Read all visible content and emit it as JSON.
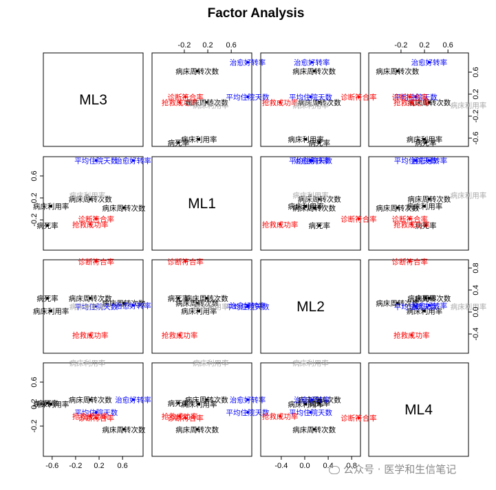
{
  "chart_data": {
    "type": "scatter",
    "title": "Factor Analysis",
    "factors": [
      "ML3",
      "ML1",
      "ML2",
      "ML4"
    ],
    "axis_range": [
      -0.75,
      0.95
    ],
    "ticks": {
      "top": [
        -0.2,
        0.2,
        0.6
      ],
      "bottom": [
        -0.6,
        -0.2,
        0.2,
        0.6
      ],
      "bottom_labels": [
        "-0.6",
        "-0.2",
        "0.2",
        "0.6"
      ],
      "left": [
        -0.2,
        0.2,
        0.6
      ],
      "right": [
        -0.6,
        -0.2,
        0.2,
        0.6
      ],
      "right_labels": [
        "-0.6",
        "-0.2",
        "0.2",
        "0.6"
      ],
      "bottom_col3": [
        -0.4,
        0.0,
        0.4,
        0.8
      ],
      "bottom_col3_labels": [
        "-0.4",
        "0.0",
        "0.4",
        "0.8"
      ],
      "right_row3": [
        -0.4,
        0.0,
        0.4,
        0.8
      ],
      "right_row3_labels": [
        "-0.4",
        "0.0",
        "0.4",
        "0.8"
      ],
      "top_labels": [
        "-0.2",
        "0.2",
        "0.6"
      ],
      "left_labels": [
        "-0.2",
        "0.2",
        "0.6"
      ]
    },
    "variables": [
      {
        "name": "病床周转次数",
        "color": "#000000",
        "ML3": 0.05,
        "ML1": 0.18,
        "ML2": 0.25,
        "ML4": 0.28
      },
      {
        "name": "病床周转次数",
        "color": "#000000",
        "ML3": 0.62,
        "ML1": 0.02,
        "ML2": 0.16,
        "ML4": -0.26
      },
      {
        "name": "病床利用率",
        "color": "#000000",
        "ML3": -0.62,
        "ML1": 0.05,
        "ML2": 0.02,
        "ML4": 0.2
      },
      {
        "name": "病死率",
        "color": "#000000",
        "ML3": -0.68,
        "ML1": -0.3,
        "ML2": 0.25,
        "ML4": 0.22
      },
      {
        "name": "治愈好转率",
        "color": "#0000ff",
        "ML3": 0.78,
        "ML1": 0.88,
        "ML2": 0.12,
        "ML4": 0.28
      },
      {
        "name": "平均住院天数",
        "color": "#0000ff",
        "ML3": 0.15,
        "ML1": 0.88,
        "ML2": 0.1,
        "ML4": 0.05
      },
      {
        "name": "诊断符合率",
        "color": "#ff0000",
        "ML3": 0.15,
        "ML1": -0.18,
        "ML2": 0.92,
        "ML4": -0.05
      },
      {
        "name": "抢救成功率",
        "color": "#ff0000",
        "ML3": 0.05,
        "ML1": -0.28,
        "ML2": -0.42,
        "ML4": -0.02
      },
      {
        "name": "病床利用率",
        "color": "#aaaaaa",
        "ML3": 0.0,
        "ML1": 0.25,
        "ML2": 0.1,
        "ML4": 0.95
      }
    ]
  },
  "watermark": "公众号 · 医学和生信笔记"
}
